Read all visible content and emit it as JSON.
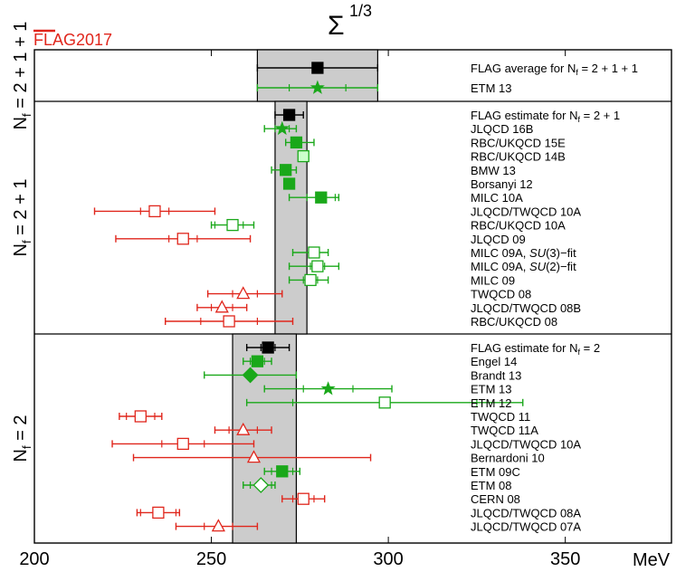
{
  "chart_data": {
    "type": "scatter",
    "title_base": "Σ",
    "title_exponent": "1/3",
    "logo": "FLAG2017",
    "xlabel": "MeV",
    "xlim": [
      200,
      380
    ],
    "xticks": [
      200,
      250,
      300,
      350
    ],
    "colors": {
      "green": "#1aa81a",
      "red": "#e0261c",
      "lightgreen": "#ccffcc",
      "black": "#000000",
      "band": "#cccccc"
    },
    "panels": [
      {
        "label_main": "N",
        "label_sub": "f",
        "label_tail": " = 2 + 1 + 1",
        "band": [
          263,
          297
        ],
        "entries": [
          {
            "label_pre": "FLAG average for N",
            "label_sub": "f",
            "label_post": " = 2 + 1 + 1",
            "x": 280,
            "err": [
              17,
              17
            ],
            "stat": null,
            "color": "black",
            "shape": "square",
            "filled": true
          },
          {
            "label": "ETM 13",
            "x": 280,
            "err": [
              17,
              17
            ],
            "stat": [
              8,
              8
            ],
            "color": "green",
            "shape": "star",
            "filled": true
          }
        ]
      },
      {
        "label_main": "N",
        "label_sub": "f",
        "label_tail": " = 2 + 1",
        "band": [
          268,
          277
        ],
        "entries": [
          {
            "label_pre": "FLAG estimate for N",
            "label_sub": "f",
            "label_post": " = 2 + 1",
            "x": 272,
            "err": [
              4,
              4
            ],
            "stat": null,
            "color": "black",
            "shape": "square",
            "filled": true
          },
          {
            "label": "JLQCD 16B",
            "x": 270,
            "err": [
              5,
              4
            ],
            "stat": [
              2,
              2
            ],
            "color": "green",
            "shape": "star",
            "filled": true
          },
          {
            "label": "RBC/UKQCD 15E",
            "x": 274,
            "err": [
              3,
              5
            ],
            "stat": [
              1,
              1
            ],
            "color": "green",
            "shape": "square",
            "filled": true
          },
          {
            "label": "RBC/UKQCD 14B",
            "x": 276,
            "err": [
              0,
              0
            ],
            "stat": null,
            "color": "lightgreen",
            "shape": "square",
            "filled": true
          },
          {
            "label": "BMW 13",
            "x": 271,
            "err": [
              4,
              3
            ],
            "stat": [
              1,
              1
            ],
            "color": "green",
            "shape": "square",
            "filled": true
          },
          {
            "label": "Borsanyi 12",
            "x": 272,
            "err": [
              0,
              0
            ],
            "stat": null,
            "color": "green",
            "shape": "square",
            "filled": true
          },
          {
            "label": "MILC 10A",
            "x": 281,
            "err": [
              9,
              5
            ],
            "stat": [
              4,
              4
            ],
            "color": "green",
            "shape": "square",
            "filled": true
          },
          {
            "label": "JLQCD/TWQCD 10A",
            "x": 234,
            "err": [
              17,
              17
            ],
            "stat": [
              4,
              4
            ],
            "color": "red",
            "shape": "square",
            "filled": false
          },
          {
            "label": "RBC/UKQCD 10A",
            "x": 256,
            "err": [
              6,
              6
            ],
            "stat": [
              5,
              3
            ],
            "color": "green",
            "shape": "square",
            "filled": false
          },
          {
            "label": "JLQCD 09",
            "x": 242,
            "err": [
              19,
              19
            ],
            "stat": [
              4,
              4
            ],
            "color": "red",
            "shape": "square",
            "filled": false
          },
          {
            "label_pre": "MILC 09A, ",
            "label_italic": "SU",
            "label_post": "(3)−fit",
            "x": 279,
            "err": [
              6,
              4
            ],
            "stat": [
              1,
              1
            ],
            "color": "green",
            "shape": "square",
            "filled": false
          },
          {
            "label_pre": "MILC 09A, ",
            "label_italic": "SU",
            "label_post": "(2)−fit",
            "x": 280,
            "err": [
              8,
              6
            ],
            "stat": [
              2,
              2
            ],
            "color": "green",
            "shape": "square",
            "filled": false
          },
          {
            "label": "MILC 09",
            "x": 278,
            "err": [
              6,
              5
            ],
            "stat": [
              2,
              2
            ],
            "color": "green",
            "shape": "square",
            "filled": false
          },
          {
            "label": "TWQCD 08",
            "x": 259,
            "err": [
              10,
              11
            ],
            "stat": [
              3,
              4
            ],
            "color": "red",
            "shape": "triangle",
            "filled": false
          },
          {
            "label": "JLQCD/TWQCD 08B",
            "x": 253,
            "err": [
              7,
              7
            ],
            "stat": [
              3,
              3
            ],
            "color": "red",
            "shape": "triangle",
            "filled": false
          },
          {
            "label": "RBC/UKQCD 08",
            "x": 255,
            "err": [
              18,
              18
            ],
            "stat": [
              8,
              8
            ],
            "color": "red",
            "shape": "square",
            "filled": false
          }
        ]
      },
      {
        "label_main": "N",
        "label_sub": "f",
        "label_tail": " = 2",
        "band": [
          256,
          274
        ],
        "entries": [
          {
            "label_pre": "FLAG estimate for N",
            "label_sub": "f",
            "label_post": " = 2",
            "x": 266,
            "err": [
              6,
              6
            ],
            "stat": [
              2,
              2
            ],
            "color": "black",
            "shape": "square",
            "filled": true
          },
          {
            "label": "Engel 14",
            "x": 263,
            "err": [
              4,
              4
            ],
            "stat": [
              2,
              2
            ],
            "color": "green",
            "shape": "square",
            "filled": true
          },
          {
            "label": "Brandt 13",
            "x": 261,
            "err": [
              13,
              13
            ],
            "stat": [
              0,
              0
            ],
            "color": "green",
            "shape": "diamond",
            "filled": true
          },
          {
            "label": "ETM 13",
            "x": 283,
            "err": [
              18,
              18
            ],
            "stat": [
              7,
              7
            ],
            "color": "green",
            "shape": "star",
            "filled": true
          },
          {
            "label": "ETM 12",
            "x": 299,
            "err": [
              39,
              39
            ],
            "stat": [
              26,
              26
            ],
            "color": "green",
            "shape": "square",
            "filled": false
          },
          {
            "label": "TWQCD 11",
            "x": 230,
            "err": [
              6,
              6
            ],
            "stat": [
              4,
              4
            ],
            "color": "red",
            "shape": "square",
            "filled": false
          },
          {
            "label": "TWQCD 11A",
            "x": 259,
            "err": [
              8,
              8
            ],
            "stat": [
              4,
              4
            ],
            "color": "red",
            "shape": "triangle",
            "filled": false
          },
          {
            "label": "JLQCD/TWQCD 10A",
            "x": 242,
            "err": [
              20,
              20
            ],
            "stat": [
              6,
              6
            ],
            "color": "red",
            "shape": "square",
            "filled": false
          },
          {
            "label": "Bernardoni 10",
            "x": 262,
            "err": [
              34,
              33
            ],
            "stat": [
              0,
              0
            ],
            "color": "red",
            "shape": "triangle",
            "filled": false
          },
          {
            "label": "ETM 09C",
            "x": 270,
            "err": [
              5,
              5
            ],
            "stat": [
              3,
              3
            ],
            "color": "green",
            "shape": "square",
            "filled": true
          },
          {
            "label": "ETM 08",
            "x": 264,
            "err": [
              5,
              4
            ],
            "stat": [
              3,
              3
            ],
            "color": "green",
            "shape": "diamond",
            "filled": false
          },
          {
            "label": "CERN 08",
            "x": 276,
            "err": [
              6,
              6
            ],
            "stat": [
              3,
              3
            ],
            "color": "red",
            "shape": "square",
            "filled": false
          },
          {
            "label": "JLQCD/TWQCD 08A",
            "x": 235,
            "err": [
              6,
              6
            ],
            "stat": [
              5,
              5
            ],
            "color": "red",
            "shape": "square",
            "filled": false
          },
          {
            "label": "JLQCD/TWQCD 07A",
            "x": 252,
            "err": [
              12,
              11
            ],
            "stat": [
              4,
              4
            ],
            "color": "red",
            "shape": "triangle",
            "filled": false
          }
        ]
      }
    ]
  }
}
